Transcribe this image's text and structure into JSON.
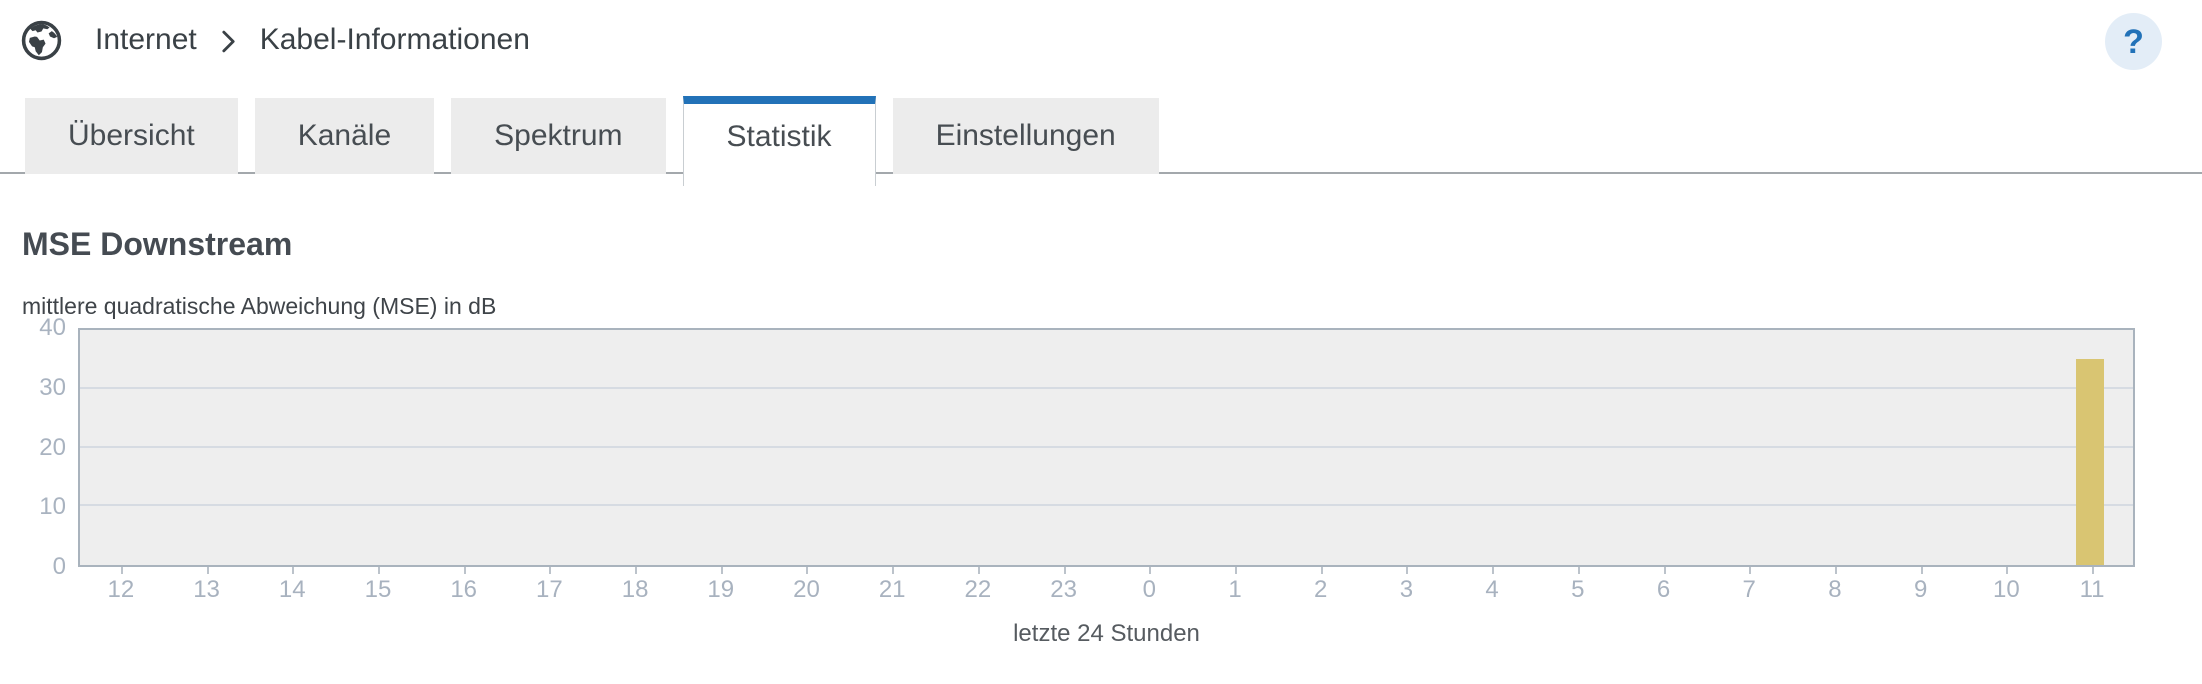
{
  "breadcrumb": {
    "section": "Internet",
    "page": "Kabel-Informationen"
  },
  "help": {
    "label": "?"
  },
  "tabs": [
    {
      "label": "Übersicht",
      "active": false
    },
    {
      "label": "Kanäle",
      "active": false
    },
    {
      "label": "Spektrum",
      "active": false
    },
    {
      "label": "Statistik",
      "active": true
    },
    {
      "label": "Einstellungen",
      "active": false
    }
  ],
  "main": {
    "title": "MSE Downstream"
  },
  "chart_data": {
    "type": "bar",
    "title": "MSE Downstream",
    "ylabel": "mittlere quadratische Abweichung (MSE) in dB",
    "xlabel": "letzte 24 Stunden",
    "categories": [
      "12",
      "13",
      "14",
      "15",
      "16",
      "17",
      "18",
      "19",
      "20",
      "21",
      "22",
      "23",
      "0",
      "1",
      "2",
      "3",
      "4",
      "5",
      "6",
      "7",
      "8",
      "9",
      "10",
      "11"
    ],
    "values": [
      0,
      0,
      0,
      0,
      0,
      0,
      0,
      0,
      0,
      0,
      0,
      0,
      0,
      0,
      0,
      0,
      0,
      0,
      0,
      0,
      0,
      0,
      0,
      35
    ],
    "ylim": [
      0,
      40
    ],
    "yticks": [
      0,
      10,
      20,
      30,
      40
    ],
    "grid": true,
    "legend": false,
    "bar_color": "#d9c572",
    "plot_bg": "#eeeeee"
  }
}
